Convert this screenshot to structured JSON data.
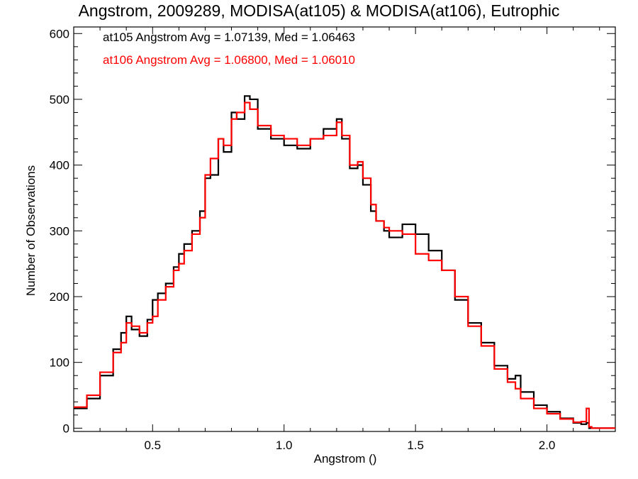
{
  "chart_data": {
    "type": "line",
    "style": "step-histogram",
    "title": "Angstrom, 2009289, MODISA(at105) & MODISA(at106), Eutrophic",
    "xlabel": "Angstrom ()",
    "ylabel": "Number of Observations",
    "xlim": [
      0.2,
      2.26
    ],
    "ylim": [
      -5,
      610
    ],
    "x_ticks": [
      0.5,
      1.0,
      1.5,
      2.0
    ],
    "x_tick_labels": [
      "0.5",
      "1.0",
      "1.5",
      "2.0"
    ],
    "y_ticks": [
      0,
      100,
      200,
      300,
      400,
      500,
      600
    ],
    "y_tick_labels": [
      "0",
      "100",
      "200",
      "300",
      "400",
      "500",
      "600"
    ],
    "grid": false,
    "legend_placement": "top-left",
    "x": [
      0.2,
      0.25,
      0.3,
      0.35,
      0.38,
      0.4,
      0.42,
      0.45,
      0.48,
      0.5,
      0.52,
      0.55,
      0.58,
      0.6,
      0.62,
      0.65,
      0.68,
      0.7,
      0.72,
      0.75,
      0.77,
      0.8,
      0.82,
      0.85,
      0.87,
      0.9,
      0.95,
      1.0,
      1.05,
      1.1,
      1.15,
      1.2,
      1.22,
      1.25,
      1.28,
      1.3,
      1.33,
      1.35,
      1.38,
      1.4,
      1.45,
      1.5,
      1.55,
      1.6,
      1.65,
      1.7,
      1.75,
      1.8,
      1.85,
      1.88,
      1.9,
      1.95,
      2.0,
      2.05,
      2.1,
      2.13,
      2.15,
      2.16,
      2.17,
      2.2,
      2.26
    ],
    "series": [
      {
        "name": "at105",
        "color": "#000000",
        "legend_text": "at105 Angstrom Avg = 1.07139, Med = 1.06463",
        "values": [
          30,
          45,
          80,
          120,
          145,
          170,
          150,
          140,
          165,
          195,
          205,
          220,
          245,
          265,
          280,
          300,
          330,
          380,
          385,
          440,
          420,
          480,
          470,
          505,
          500,
          455,
          440,
          430,
          425,
          440,
          455,
          470,
          440,
          395,
          400,
          370,
          330,
          315,
          300,
          290,
          310,
          295,
          270,
          240,
          195,
          160,
          130,
          95,
          75,
          80,
          55,
          35,
          25,
          15,
          8,
          6,
          8,
          0,
          0,
          0,
          0
        ]
      },
      {
        "name": "at106",
        "color": "#ff0000",
        "legend_text": "at106 Angstrom Avg = 1.06800, Med = 1.06010",
        "values": [
          32,
          50,
          85,
          115,
          130,
          160,
          155,
          145,
          160,
          170,
          195,
          215,
          240,
          250,
          270,
          295,
          320,
          385,
          410,
          440,
          430,
          470,
          480,
          495,
          485,
          460,
          445,
          440,
          430,
          440,
          445,
          465,
          445,
          400,
          405,
          380,
          340,
          315,
          305,
          300,
          295,
          265,
          255,
          240,
          200,
          155,
          125,
          90,
          70,
          60,
          45,
          30,
          22,
          14,
          9,
          10,
          30,
          2,
          0,
          0,
          0
        ]
      }
    ]
  }
}
